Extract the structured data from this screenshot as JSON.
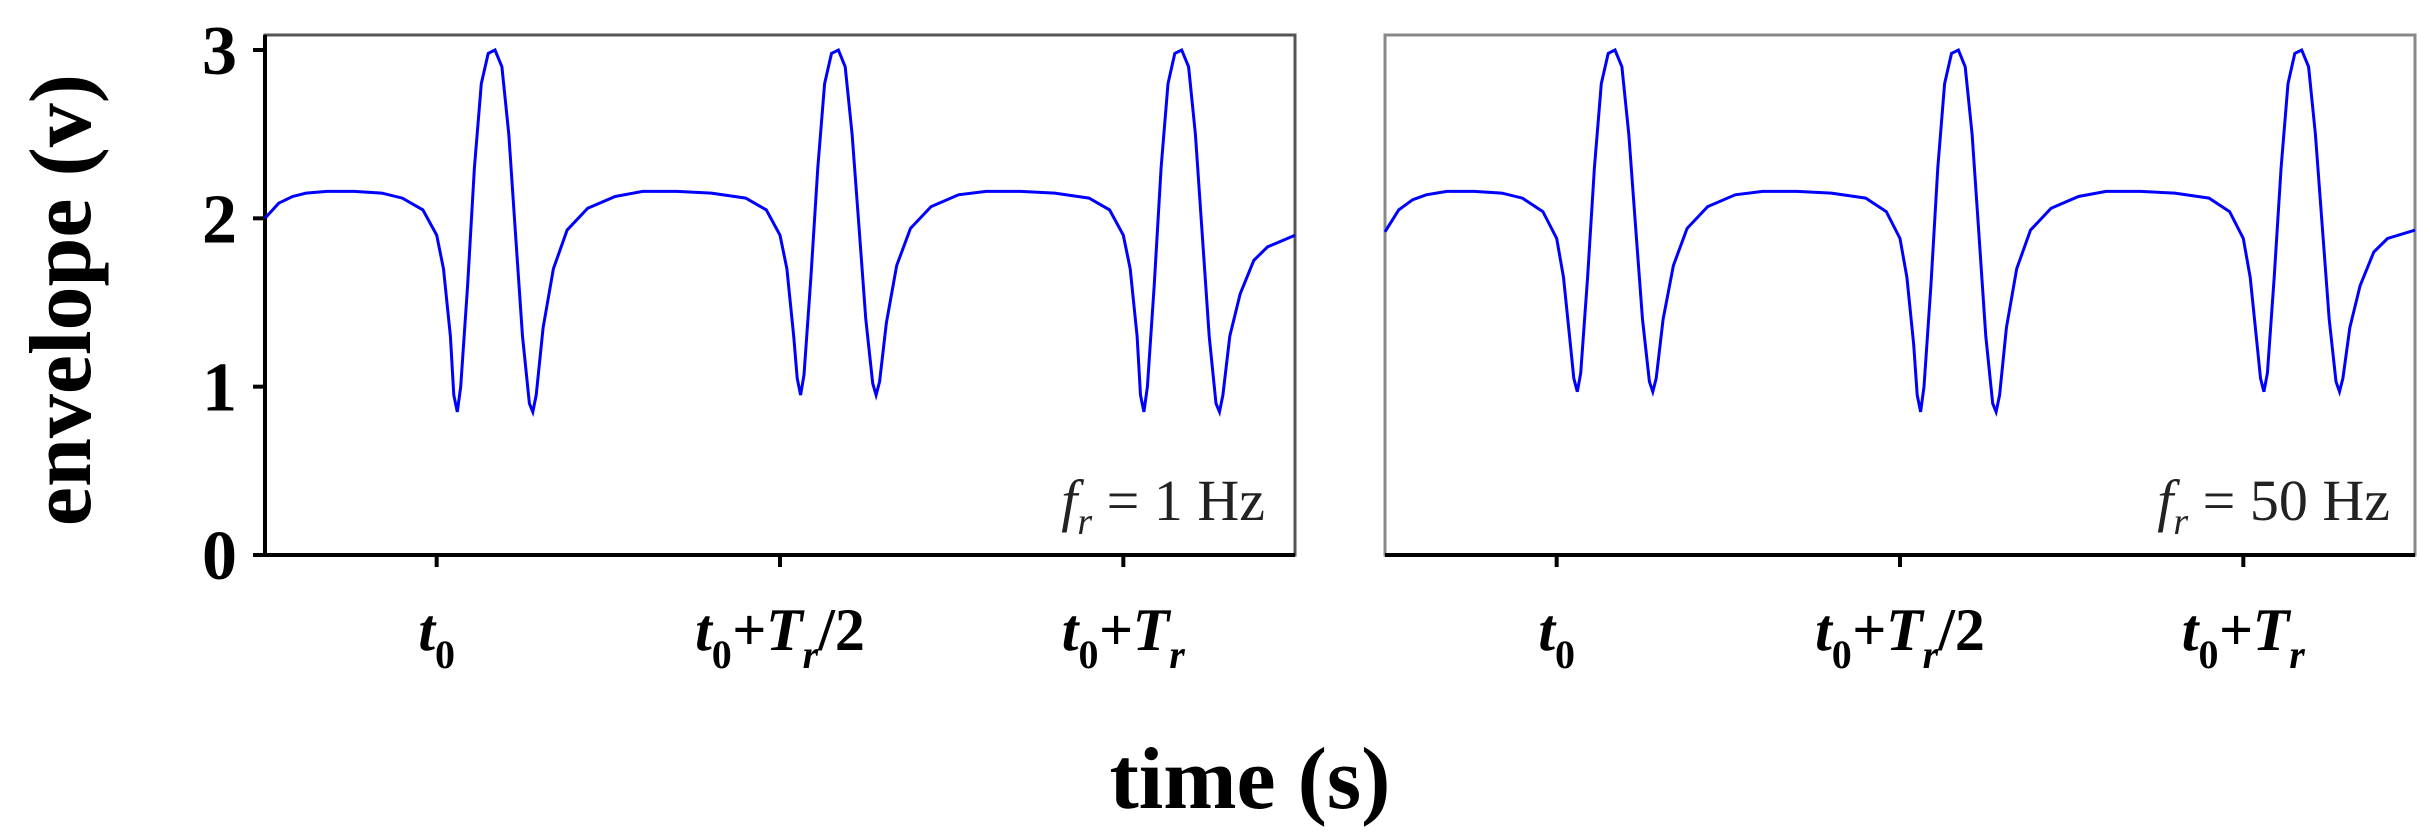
{
  "chart_data": [
    {
      "type": "line",
      "panel": "left",
      "ylabel": "envelope (v)",
      "ylim": [
        0,
        3
      ],
      "y_ticks": [
        "0",
        "1",
        "2",
        "3"
      ],
      "x_tick_labels": [
        {
          "t": "t",
          "sub": "0",
          "rest": ""
        },
        {
          "t": "t",
          "sub": "0",
          "rest": "+T",
          "sub2": "r",
          "tail": "/2"
        },
        {
          "t": "t",
          "sub": "0",
          "rest": "+T",
          "sub2": "r",
          "tail": ""
        }
      ],
      "x_tick_positions": [
        0,
        0.5,
        1.0
      ],
      "xlim": [
        -0.25,
        1.25
      ],
      "annotation": {
        "f": "f",
        "sub": "r",
        "text": " = 1 Hz"
      },
      "series": [
        {
          "color": "#0000ff",
          "points": [
            [
              -0.25,
              2.0
            ],
            [
              -0.23,
              2.09
            ],
            [
              -0.21,
              2.13
            ],
            [
              -0.19,
              2.15
            ],
            [
              -0.16,
              2.16
            ],
            [
              -0.12,
              2.16
            ],
            [
              -0.08,
              2.15
            ],
            [
              -0.05,
              2.12
            ],
            [
              -0.02,
              2.05
            ],
            [
              0.0,
              1.9
            ],
            [
              0.01,
              1.7
            ],
            [
              0.02,
              1.3
            ],
            [
              0.025,
              0.95
            ],
            [
              0.03,
              0.85
            ],
            [
              0.035,
              1.0
            ],
            [
              0.045,
              1.6
            ],
            [
              0.055,
              2.3
            ],
            [
              0.065,
              2.8
            ],
            [
              0.075,
              2.98
            ],
            [
              0.085,
              3.0
            ],
            [
              0.095,
              2.9
            ],
            [
              0.105,
              2.5
            ],
            [
              0.115,
              1.9
            ],
            [
              0.125,
              1.3
            ],
            [
              0.135,
              0.9
            ],
            [
              0.14,
              0.85
            ],
            [
              0.145,
              0.95
            ],
            [
              0.155,
              1.35
            ],
            [
              0.17,
              1.7
            ],
            [
              0.19,
              1.93
            ],
            [
              0.22,
              2.06
            ],
            [
              0.26,
              2.13
            ],
            [
              0.3,
              2.16
            ],
            [
              0.35,
              2.16
            ],
            [
              0.4,
              2.15
            ],
            [
              0.45,
              2.12
            ],
            [
              0.48,
              2.05
            ],
            [
              0.5,
              1.9
            ],
            [
              0.51,
              1.7
            ],
            [
              0.52,
              1.3
            ],
            [
              0.525,
              1.05
            ],
            [
              0.53,
              0.95
            ],
            [
              0.535,
              1.07
            ],
            [
              0.545,
              1.65
            ],
            [
              0.555,
              2.3
            ],
            [
              0.565,
              2.8
            ],
            [
              0.575,
              2.98
            ],
            [
              0.585,
              3.0
            ],
            [
              0.595,
              2.9
            ],
            [
              0.605,
              2.5
            ],
            [
              0.615,
              1.95
            ],
            [
              0.625,
              1.4
            ],
            [
              0.635,
              1.02
            ],
            [
              0.64,
              0.95
            ],
            [
              0.645,
              1.03
            ],
            [
              0.655,
              1.38
            ],
            [
              0.67,
              1.72
            ],
            [
              0.69,
              1.94
            ],
            [
              0.72,
              2.07
            ],
            [
              0.76,
              2.14
            ],
            [
              0.8,
              2.16
            ],
            [
              0.85,
              2.16
            ],
            [
              0.9,
              2.15
            ],
            [
              0.95,
              2.12
            ],
            [
              0.98,
              2.05
            ],
            [
              1.0,
              1.9
            ],
            [
              1.01,
              1.7
            ],
            [
              1.02,
              1.3
            ],
            [
              1.025,
              0.95
            ],
            [
              1.03,
              0.85
            ],
            [
              1.035,
              1.0
            ],
            [
              1.045,
              1.6
            ],
            [
              1.055,
              2.3
            ],
            [
              1.065,
              2.8
            ],
            [
              1.075,
              2.98
            ],
            [
              1.085,
              3.0
            ],
            [
              1.095,
              2.9
            ],
            [
              1.105,
              2.5
            ],
            [
              1.115,
              1.9
            ],
            [
              1.125,
              1.3
            ],
            [
              1.135,
              0.9
            ],
            [
              1.14,
              0.85
            ],
            [
              1.145,
              0.95
            ],
            [
              1.155,
              1.3
            ],
            [
              1.17,
              1.55
            ],
            [
              1.19,
              1.75
            ],
            [
              1.21,
              1.83
            ],
            [
              1.25,
              1.9
            ]
          ]
        }
      ]
    },
    {
      "type": "line",
      "panel": "right",
      "ylim": [
        0,
        3
      ],
      "x_tick_labels": [
        {
          "t": "t",
          "sub": "0",
          "rest": ""
        },
        {
          "t": "t",
          "sub": "0",
          "rest": "+T",
          "sub2": "r",
          "tail": "/2"
        },
        {
          "t": "t",
          "sub": "0",
          "rest": "+T",
          "sub2": "r",
          "tail": ""
        }
      ],
      "x_tick_positions": [
        0,
        0.5,
        1.0
      ],
      "xlim": [
        -0.25,
        1.25
      ],
      "annotation": {
        "f": "f",
        "sub": "r",
        "text": " = 50 Hz"
      },
      "series": [
        {
          "color": "#0000ff",
          "points": [
            [
              -0.25,
              1.92
            ],
            [
              -0.23,
              2.05
            ],
            [
              -0.21,
              2.11
            ],
            [
              -0.19,
              2.14
            ],
            [
              -0.16,
              2.16
            ],
            [
              -0.12,
              2.16
            ],
            [
              -0.08,
              2.15
            ],
            [
              -0.05,
              2.12
            ],
            [
              -0.02,
              2.04
            ],
            [
              0.0,
              1.88
            ],
            [
              0.01,
              1.65
            ],
            [
              0.02,
              1.25
            ],
            [
              0.025,
              1.05
            ],
            [
              0.03,
              0.97
            ],
            [
              0.035,
              1.08
            ],
            [
              0.045,
              1.65
            ],
            [
              0.055,
              2.3
            ],
            [
              0.065,
              2.8
            ],
            [
              0.075,
              2.98
            ],
            [
              0.085,
              3.0
            ],
            [
              0.095,
              2.9
            ],
            [
              0.105,
              2.5
            ],
            [
              0.115,
              1.95
            ],
            [
              0.125,
              1.4
            ],
            [
              0.135,
              1.03
            ],
            [
              0.14,
              0.97
            ],
            [
              0.145,
              1.05
            ],
            [
              0.155,
              1.4
            ],
            [
              0.17,
              1.72
            ],
            [
              0.19,
              1.94
            ],
            [
              0.22,
              2.07
            ],
            [
              0.26,
              2.14
            ],
            [
              0.3,
              2.16
            ],
            [
              0.35,
              2.16
            ],
            [
              0.4,
              2.15
            ],
            [
              0.45,
              2.12
            ],
            [
              0.48,
              2.04
            ],
            [
              0.5,
              1.88
            ],
            [
              0.51,
              1.65
            ],
            [
              0.52,
              1.25
            ],
            [
              0.525,
              0.95
            ],
            [
              0.53,
              0.85
            ],
            [
              0.535,
              1.0
            ],
            [
              0.545,
              1.6
            ],
            [
              0.555,
              2.3
            ],
            [
              0.565,
              2.8
            ],
            [
              0.575,
              2.98
            ],
            [
              0.585,
              3.0
            ],
            [
              0.595,
              2.9
            ],
            [
              0.605,
              2.5
            ],
            [
              0.615,
              1.9
            ],
            [
              0.625,
              1.3
            ],
            [
              0.635,
              0.9
            ],
            [
              0.64,
              0.85
            ],
            [
              0.645,
              0.95
            ],
            [
              0.655,
              1.35
            ],
            [
              0.67,
              1.7
            ],
            [
              0.69,
              1.93
            ],
            [
              0.72,
              2.06
            ],
            [
              0.76,
              2.13
            ],
            [
              0.8,
              2.16
            ],
            [
              0.85,
              2.16
            ],
            [
              0.9,
              2.15
            ],
            [
              0.95,
              2.12
            ],
            [
              0.98,
              2.04
            ],
            [
              1.0,
              1.88
            ],
            [
              1.01,
              1.65
            ],
            [
              1.02,
              1.25
            ],
            [
              1.025,
              1.05
            ],
            [
              1.03,
              0.97
            ],
            [
              1.035,
              1.08
            ],
            [
              1.045,
              1.65
            ],
            [
              1.055,
              2.3
            ],
            [
              1.065,
              2.8
            ],
            [
              1.075,
              2.98
            ],
            [
              1.085,
              3.0
            ],
            [
              1.095,
              2.9
            ],
            [
              1.105,
              2.5
            ],
            [
              1.115,
              1.95
            ],
            [
              1.125,
              1.4
            ],
            [
              1.135,
              1.03
            ],
            [
              1.14,
              0.97
            ],
            [
              1.145,
              1.05
            ],
            [
              1.155,
              1.35
            ],
            [
              1.17,
              1.6
            ],
            [
              1.19,
              1.8
            ],
            [
              1.21,
              1.88
            ],
            [
              1.25,
              1.93
            ]
          ]
        }
      ]
    }
  ],
  "xlabel": "time (s)"
}
